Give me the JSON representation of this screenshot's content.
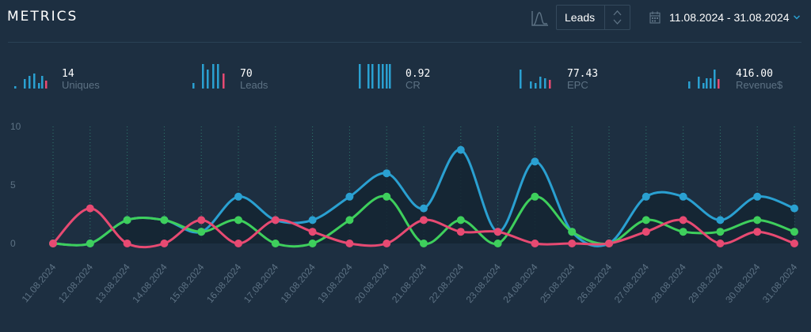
{
  "header": {
    "title": "METRICS",
    "select_value": "Leads",
    "date_range": "11.08.2024 - 31.08.2024"
  },
  "colors": {
    "background": "#1d2f41",
    "blue": "#2aa0d1",
    "green": "#3ecf5c",
    "pink": "#e74a72",
    "grid": "#2f7a6d",
    "muted": "#5d7284"
  },
  "icons": {
    "chart_type": "area-chart-icon",
    "select_arrows": "up-down-arrows-icon",
    "calendar": "calendar-icon",
    "chevron": "chevron-down-icon"
  },
  "metrics": [
    {
      "value": "14",
      "label": "Uniques"
    },
    {
      "value": "70",
      "label": "Leads"
    },
    {
      "value": "0.92",
      "label": "CR"
    },
    {
      "value": "77.43",
      "label": "EPC"
    },
    {
      "value": "416.00",
      "label": "Revenue$"
    }
  ],
  "chart_data": {
    "type": "line",
    "x": [
      "11.08.2024",
      "12.08.2024",
      "13.08.2024",
      "14.08.2024",
      "15.08.2024",
      "16.08.2024",
      "17.08.2024",
      "18.08.2024",
      "19.08.2024",
      "20.08.2024",
      "21.08.2024",
      "22.08.2024",
      "23.08.2024",
      "24.08.2024",
      "25.08.2024",
      "26.08.2024",
      "27.08.2024",
      "28.08.2024",
      "29.08.2024",
      "30.08.2024",
      "31.08.2024"
    ],
    "yticks": [
      "10",
      "5",
      "0"
    ],
    "ylim": [
      0,
      10
    ],
    "grid": "vertical-dotted",
    "series": [
      {
        "color": "#2aa0d1",
        "values": [
          0,
          0,
          2,
          2,
          1,
          4,
          2,
          2,
          4,
          6,
          3,
          8,
          1,
          7,
          1,
          0,
          4,
          4,
          2,
          4,
          3
        ]
      },
      {
        "color": "#3ecf5c",
        "values": [
          0,
          0,
          2,
          2,
          1,
          2,
          0,
          0,
          2,
          4,
          0,
          2,
          0,
          4,
          1,
          0,
          2,
          1,
          1,
          2,
          1
        ]
      },
      {
        "color": "#e74a72",
        "values": [
          0,
          3,
          0,
          0,
          2,
          0,
          2,
          1,
          0,
          0,
          2,
          1,
          1,
          0,
          0,
          0,
          1,
          2,
          0,
          1,
          0
        ]
      }
    ]
  }
}
